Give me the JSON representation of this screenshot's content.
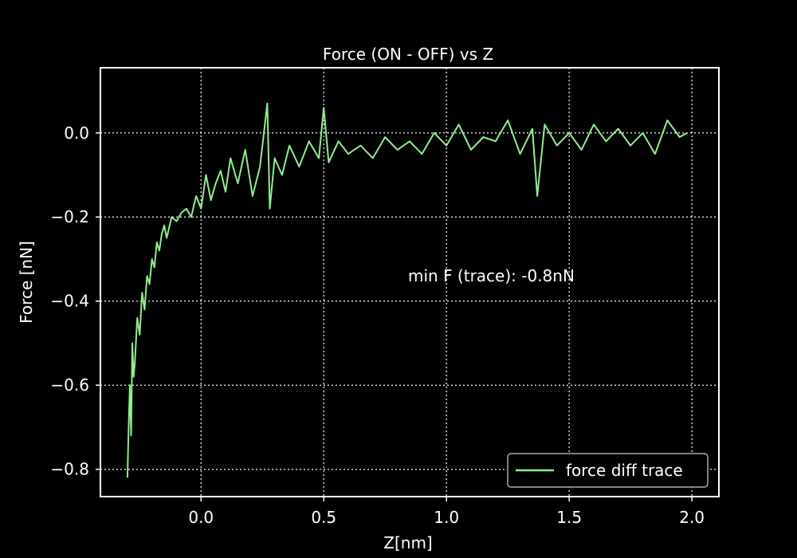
{
  "chart_data": {
    "type": "line",
    "title": "Force (ON - OFF) vs Z",
    "xlabel": "Z[nm]",
    "ylabel": "Force [nN]",
    "xlim": [
      -0.41,
      2.11
    ],
    "ylim": [
      -0.865,
      0.155
    ],
    "xticks": [
      0.0,
      0.5,
      1.0,
      1.5,
      2.0
    ],
    "xtick_labels": [
      "0.0",
      "0.5",
      "1.0",
      "1.5",
      "2.0"
    ],
    "yticks": [
      0.0,
      -0.2,
      -0.4,
      -0.6,
      -0.8
    ],
    "ytick_labels": [
      "0.0",
      "−0.2",
      "−0.4",
      "−0.6",
      "−0.8"
    ],
    "grid": true,
    "legend_position": "lower-right",
    "annotation": "min F (trace): -0.8nN",
    "colors": {
      "background": "#000000",
      "series": "#90ee90",
      "axes": "#ffffff",
      "legend_edge": "#aaaaaa"
    },
    "series": [
      {
        "name": "force diff trace",
        "x": [
          -0.3,
          -0.295,
          -0.29,
          -0.285,
          -0.28,
          -0.275,
          -0.27,
          -0.26,
          -0.25,
          -0.24,
          -0.23,
          -0.22,
          -0.21,
          -0.2,
          -0.19,
          -0.18,
          -0.17,
          -0.16,
          -0.15,
          -0.14,
          -0.12,
          -0.1,
          -0.08,
          -0.06,
          -0.04,
          -0.02,
          0.0,
          0.02,
          0.04,
          0.06,
          0.08,
          0.1,
          0.12,
          0.15,
          0.18,
          0.21,
          0.24,
          0.27,
          0.28,
          0.3,
          0.33,
          0.36,
          0.4,
          0.44,
          0.48,
          0.5,
          0.52,
          0.56,
          0.6,
          0.65,
          0.7,
          0.75,
          0.8,
          0.85,
          0.9,
          0.95,
          1.0,
          1.05,
          1.1,
          1.15,
          1.2,
          1.25,
          1.3,
          1.35,
          1.37,
          1.4,
          1.45,
          1.5,
          1.55,
          1.6,
          1.65,
          1.7,
          1.75,
          1.8,
          1.85,
          1.9,
          1.95,
          1.98
        ],
        "y": [
          -0.82,
          -0.7,
          -0.6,
          -0.72,
          -0.5,
          -0.58,
          -0.55,
          -0.44,
          -0.48,
          -0.38,
          -0.42,
          -0.34,
          -0.36,
          -0.3,
          -0.32,
          -0.26,
          -0.28,
          -0.24,
          -0.22,
          -0.25,
          -0.2,
          -0.21,
          -0.19,
          -0.18,
          -0.2,
          -0.15,
          -0.18,
          -0.1,
          -0.16,
          -0.12,
          -0.09,
          -0.14,
          -0.06,
          -0.12,
          -0.04,
          -0.15,
          -0.08,
          0.07,
          -0.18,
          -0.06,
          -0.1,
          -0.03,
          -0.08,
          -0.02,
          -0.06,
          0.06,
          -0.07,
          -0.02,
          -0.05,
          -0.03,
          -0.06,
          -0.01,
          -0.04,
          -0.02,
          -0.05,
          0.0,
          -0.03,
          0.02,
          -0.04,
          -0.01,
          -0.02,
          0.03,
          -0.05,
          0.01,
          -0.15,
          0.02,
          -0.03,
          0.0,
          -0.04,
          0.02,
          -0.02,
          0.01,
          -0.03,
          0.0,
          -0.05,
          0.03,
          -0.01,
          0.0
        ]
      }
    ]
  }
}
